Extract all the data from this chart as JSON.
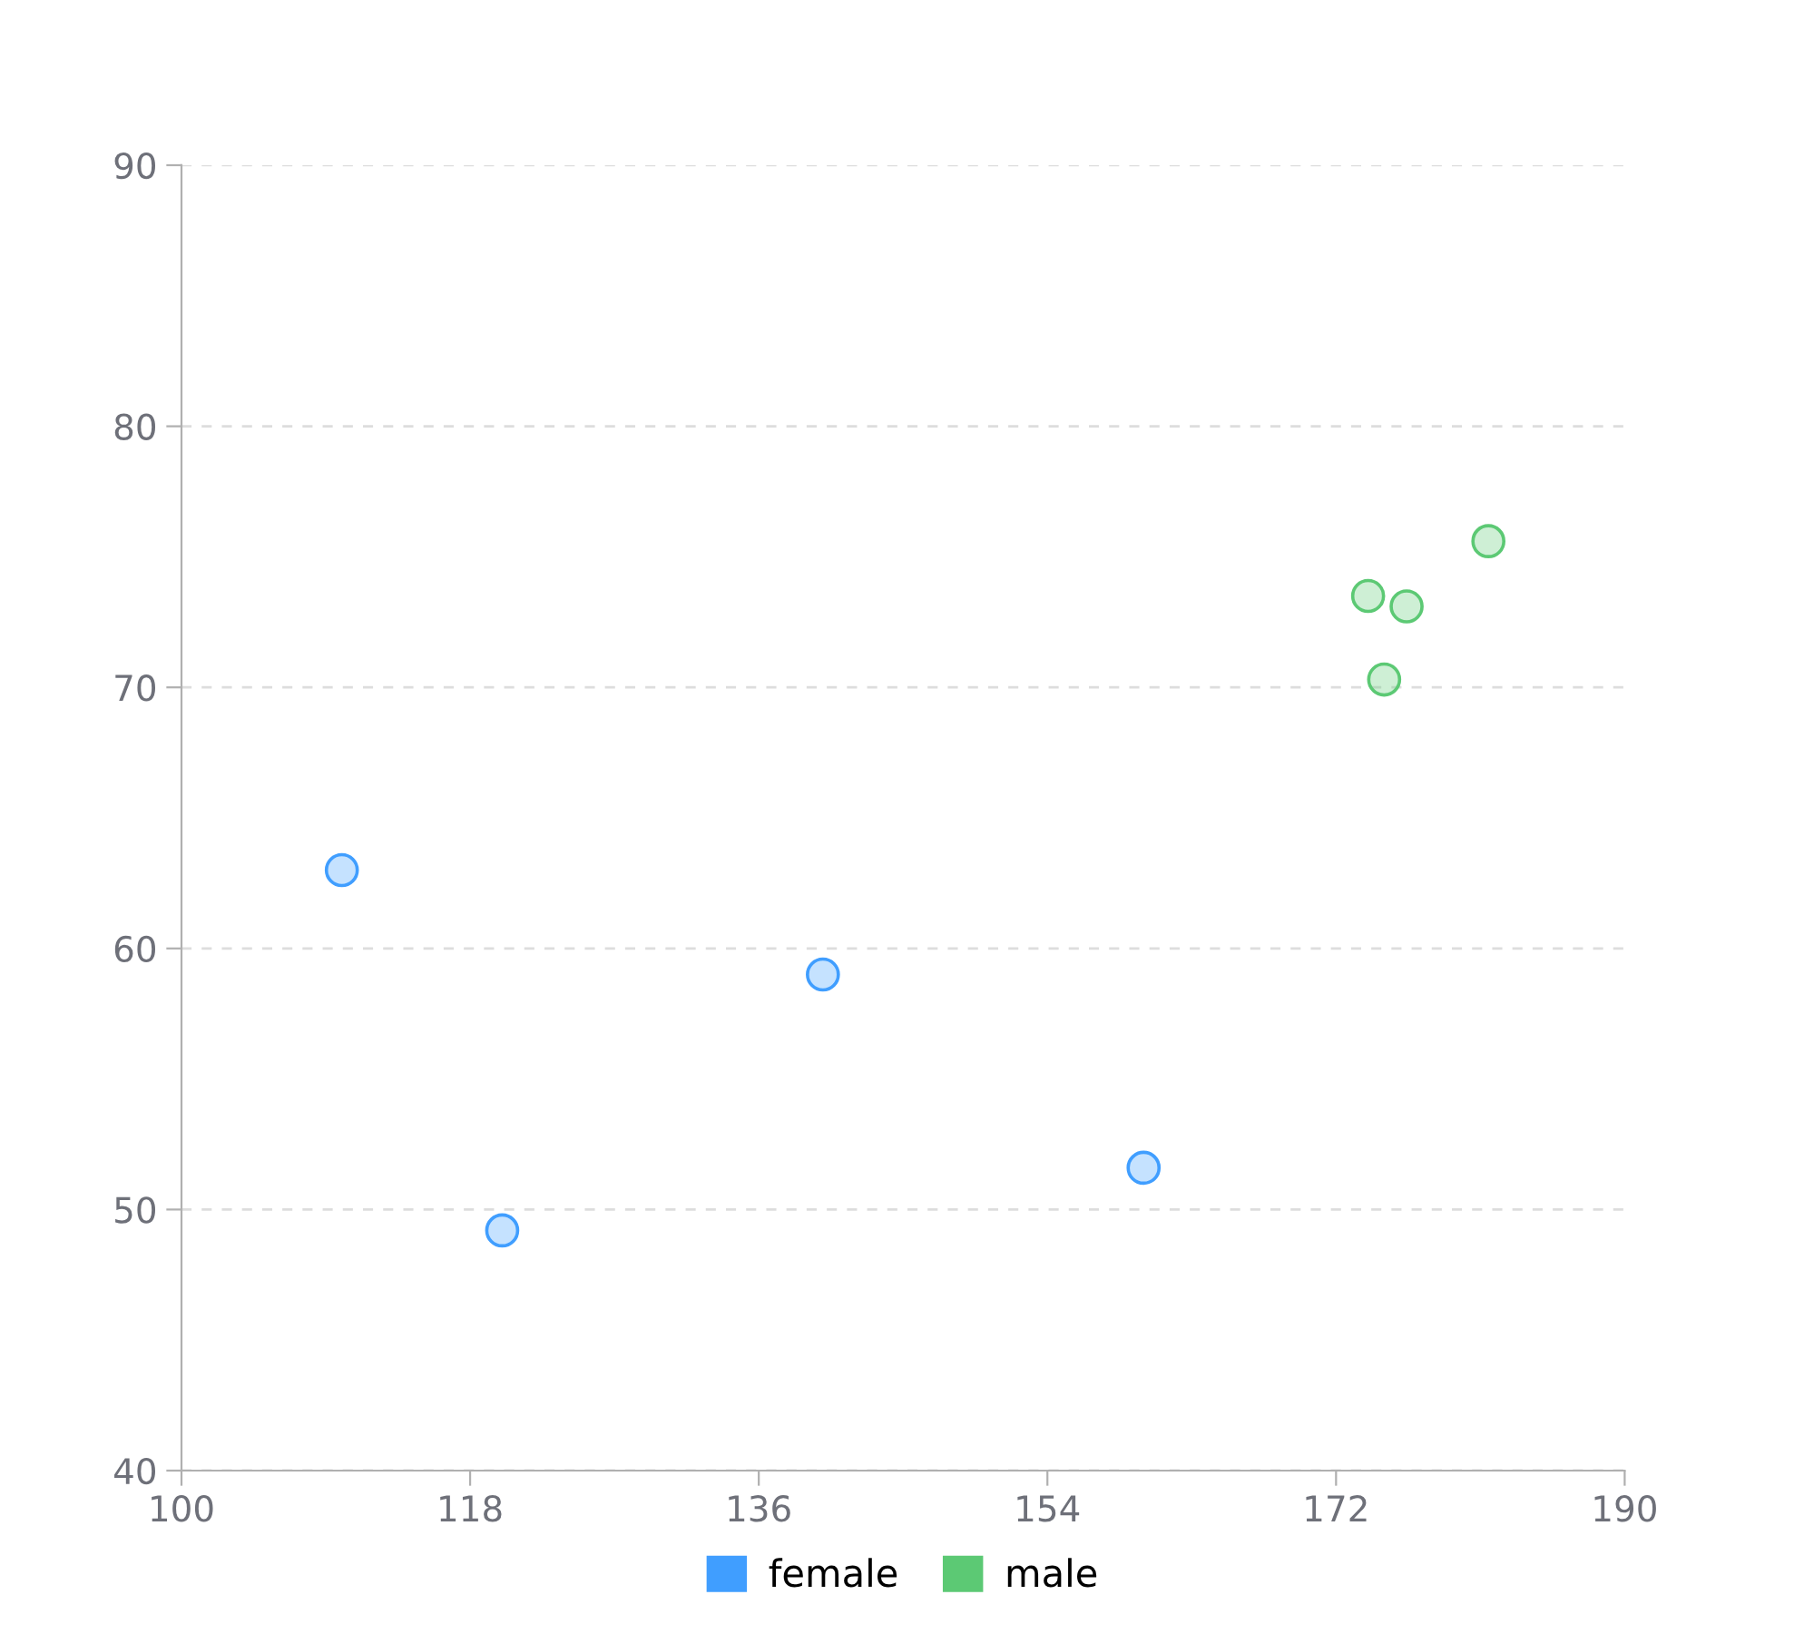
{
  "chart_data": {
    "type": "scatter",
    "series": [
      {
        "name": "female",
        "color": "#409eff",
        "x": [
          110,
          120,
          140,
          160
        ],
        "values": [
          63,
          49.2,
          59,
          51.6
        ]
      },
      {
        "name": "male",
        "color": "#5cc974",
        "x": [
          174,
          176.4,
          175,
          181.5
        ],
        "values": [
          73.5,
          73.1,
          70.3,
          75.6
        ]
      }
    ],
    "xlim": [
      100,
      190
    ],
    "xticks": [
      100,
      118,
      136,
      154,
      172,
      190
    ],
    "ylim": [
      40,
      90
    ],
    "yticks": [
      40,
      50,
      60,
      70,
      80,
      90
    ],
    "grid": "y",
    "legend": "bottom",
    "marker": "circle"
  }
}
